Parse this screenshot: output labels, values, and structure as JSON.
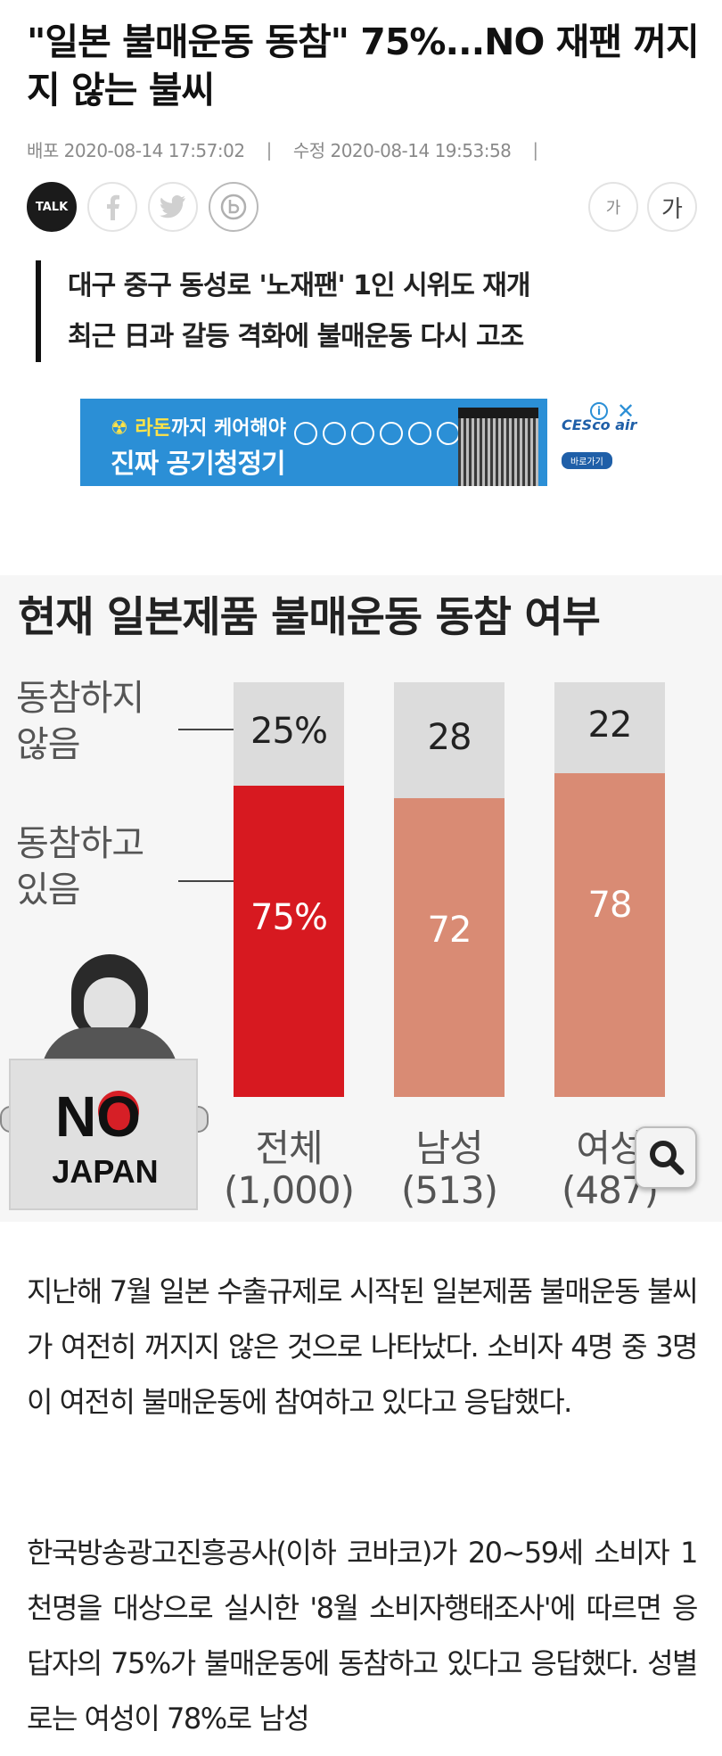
{
  "article": {
    "headline_line1": "\"일본 불매운동 동참\" 75%...NO 재팬 꺼지",
    "headline_line2": "지 않는 불씨",
    "published_label": "배포 2020-08-14 17:57:02",
    "modified_label": "수정 2020-08-14 19:53:58",
    "separator": "|",
    "subhead_line1": "대구 중구 동성로 '노재팬' 1인 시위도 재개",
    "subhead_line2": "최근 日과 갈등 격화에 불매운동 다시 고조"
  },
  "share": {
    "talk_label": "TALK",
    "facebook_icon": "facebook-icon",
    "twitter_icon": "twitter-icon",
    "band_icon": "band-icon",
    "font_small": "가",
    "font_large": "가"
  },
  "ad": {
    "line1_highlight": "라돈",
    "line1_rest": "까지 케어해야",
    "line2": "진짜 공기청정기",
    "brand": "CESco air",
    "cta": "바로가기",
    "info_icon": "info-icon",
    "close_icon": "close-icon"
  },
  "infographic": {
    "title": "현재 일본제품 불매운동 동참 여부",
    "legend_not_joined_line1": "동참하지",
    "legend_not_joined_line2": "않음",
    "legend_joined_line1": "동참하고",
    "legend_joined_line2": "있음",
    "sign_no": "NO",
    "sign_japan": "JAPAN",
    "colors": {
      "not_joined": "#dcdcdc",
      "joined_total": "#d71920",
      "joined_group": "#d98b74",
      "label_on_light": "#222222",
      "label_on_dark": "#ffffff"
    }
  },
  "chart_data": {
    "type": "bar",
    "stacked": true,
    "title": "현재 일본제품 불매운동 동참 여부",
    "categories": [
      "전체",
      "남성",
      "여성"
    ],
    "counts": [
      "(1,000)",
      "(513)",
      "(487)"
    ],
    "series": [
      {
        "name": "동참하고 있음",
        "values": [
          75,
          72,
          78
        ],
        "labels": [
          "75%",
          "72",
          "78"
        ]
      },
      {
        "name": "동참하지 않음",
        "values": [
          25,
          28,
          22
        ],
        "labels": [
          "25%",
          "28",
          "22"
        ]
      }
    ],
    "ylim": [
      0,
      100
    ]
  },
  "body": {
    "para1": "지난해 7월 일본 수출규제로 시작된 일본제품 불매운동 불씨가 여전히 꺼지지 않은 것으로 나타났다. 소비자 4명 중 3명이 여전히 불매운동에 참여하고 있다고 응답했다.",
    "para2": "한국방송광고진흥공사(이하 코바코)가 20~59세 소비자 1천명을 대상으로 실시한 '8월 소비자행태조사'에 따르면 응답자의 75%가 불매운동에 동참하고 있다고 응답했다. 성별로는 여성이 78%로 남성"
  },
  "controls": {
    "zoom_icon": "magnifier-icon"
  }
}
